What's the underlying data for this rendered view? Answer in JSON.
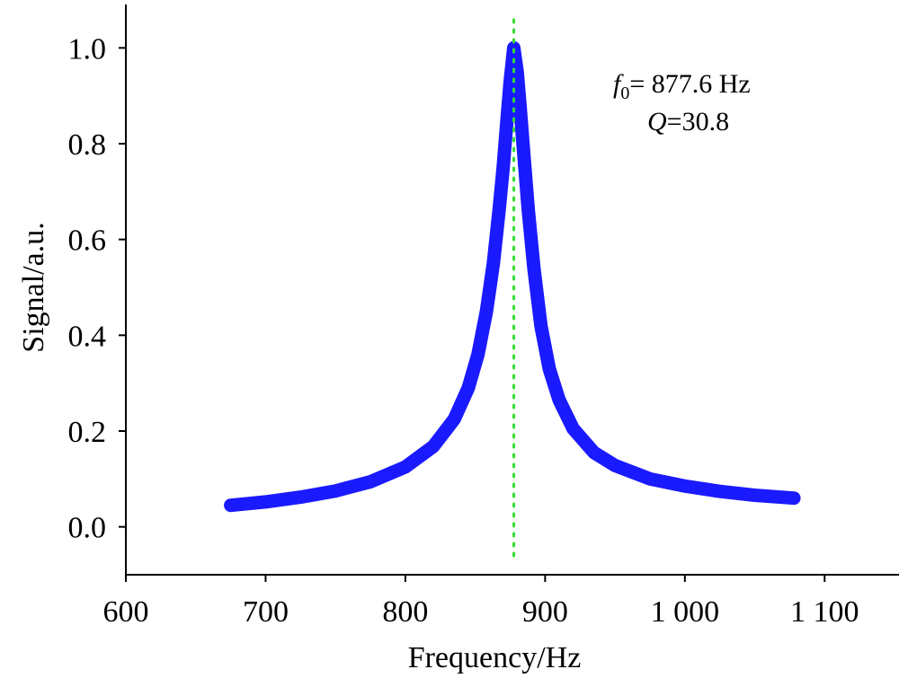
{
  "chart_data": {
    "type": "line",
    "xlabel": "Frequency/Hz",
    "ylabel": "Signal/a.u.",
    "xlim": [
      600,
      1150
    ],
    "ylim": [
      -0.1,
      1.1
    ],
    "x_ticks": [
      600,
      700,
      800,
      900,
      1000,
      1100
    ],
    "x_tick_labels": [
      "600",
      "700",
      "800",
      "900",
      "1 000",
      "1 100"
    ],
    "y_ticks": [
      0.0,
      0.2,
      0.4,
      0.6,
      0.8,
      1.0
    ],
    "y_tick_labels": [
      "0.0",
      "0.2",
      "0.4",
      "0.6",
      "0.8",
      "1.0"
    ],
    "grid": false,
    "series": [
      {
        "color": "#1a1aff",
        "x": [
          675,
          700,
          725,
          750,
          775,
          800,
          820,
          835,
          845,
          852,
          858,
          863,
          867,
          870,
          873,
          875,
          877.6,
          880,
          882,
          885,
          888,
          892,
          897,
          903,
          910,
          920,
          935,
          950,
          975,
          1000,
          1025,
          1050,
          1078
        ],
        "y": [
          0.045,
          0.052,
          0.062,
          0.075,
          0.094,
          0.125,
          0.168,
          0.225,
          0.29,
          0.36,
          0.45,
          0.55,
          0.66,
          0.75,
          0.86,
          0.93,
          1.0,
          0.95,
          0.88,
          0.77,
          0.66,
          0.54,
          0.42,
          0.33,
          0.265,
          0.205,
          0.155,
          0.128,
          0.1,
          0.085,
          0.074,
          0.066,
          0.06
        ]
      }
    ],
    "reference_line": {
      "x": 877.6,
      "color": "#33dd33",
      "style": "dotted"
    },
    "annotations": {
      "f0_symbol": "f",
      "f0_subscript": "0",
      "f0_value": "= 877.6 Hz",
      "q_symbol": "Q",
      "q_value": "=30.8"
    }
  }
}
